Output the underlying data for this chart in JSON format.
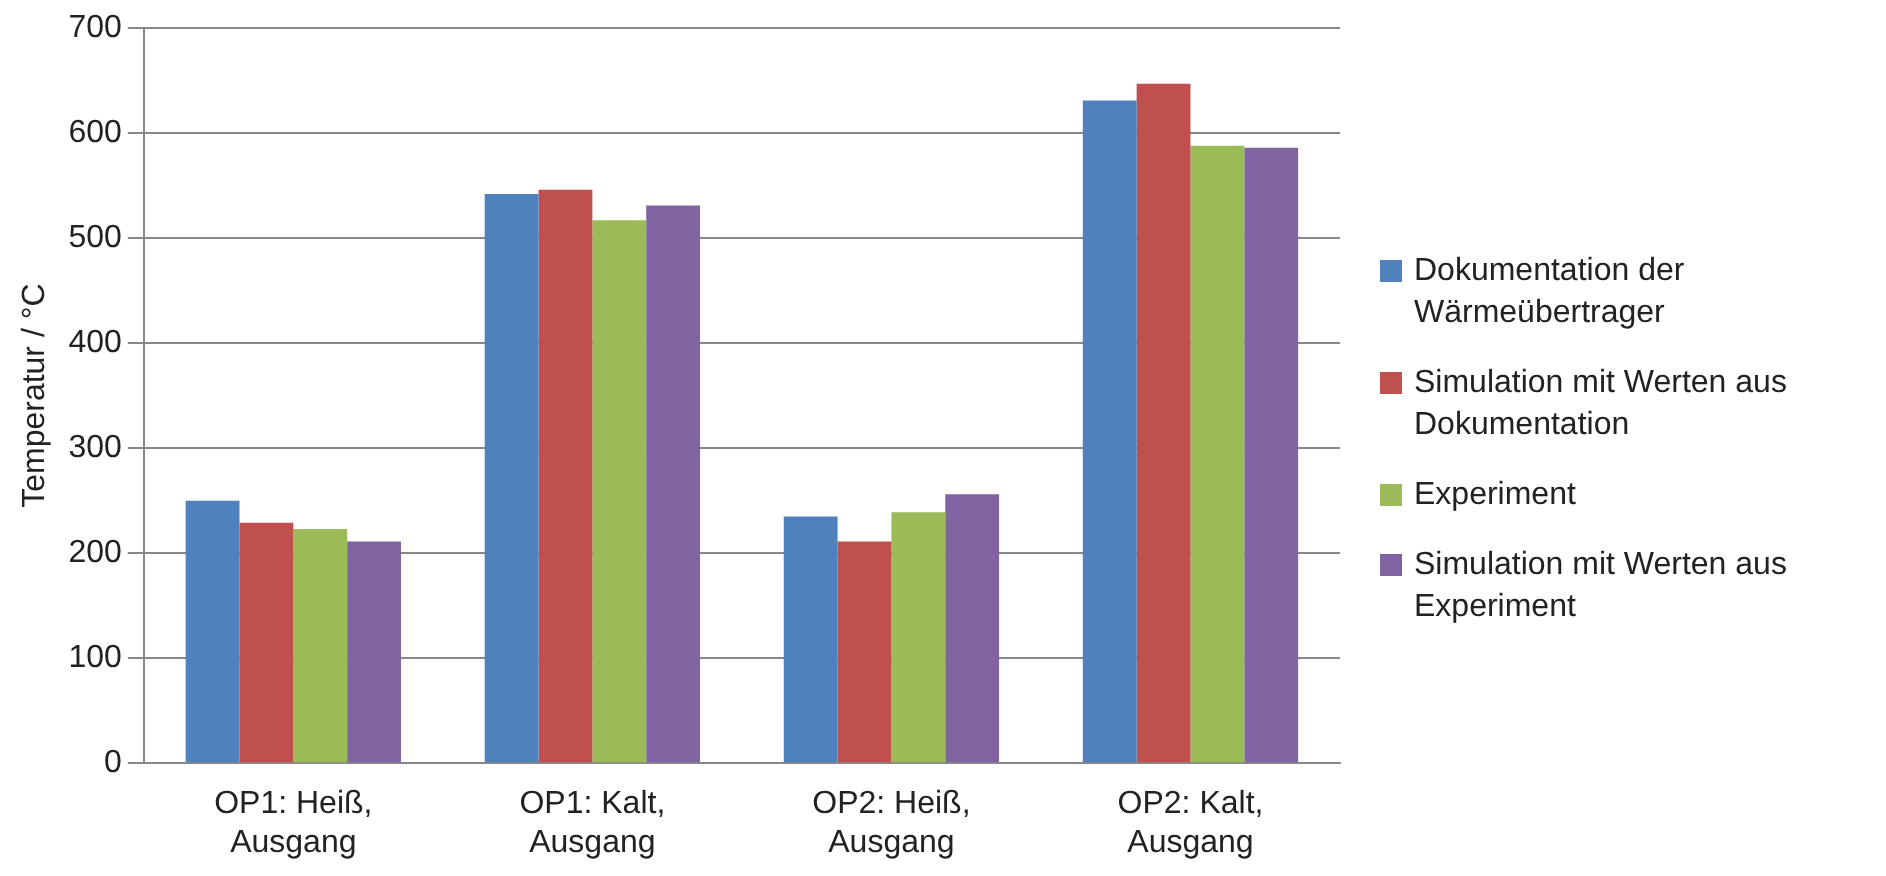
{
  "chart_data": {
    "type": "bar",
    "ylabel": "Temperatur / °C",
    "categories": [
      "OP1: Heiß, Ausgang",
      "OP1: Kalt, Ausgang",
      "OP2: Heiß, Ausgang",
      "OP2: Kalt, Ausgang"
    ],
    "series": [
      {
        "name": "Dokumentation der Wärmeübertrager",
        "color": "#4f81bd",
        "values": [
          250,
          542,
          235,
          631
        ]
      },
      {
        "name": "Simulation mit Werten aus Dokumentation",
        "color": "#c0504d",
        "values": [
          229,
          546,
          211,
          647
        ]
      },
      {
        "name": "Experiment",
        "color": "#9bbb59",
        "values": [
          223,
          517,
          239,
          588
        ]
      },
      {
        "name": "Simulation mit Werten aus Experiment",
        "color": "#8064a2",
        "values": [
          211,
          531,
          256,
          586
        ]
      }
    ],
    "ylim": [
      0,
      700
    ],
    "yticks": [
      0,
      100,
      200,
      300,
      400,
      500,
      600,
      700
    ],
    "grid": "y",
    "legend": "right"
  }
}
